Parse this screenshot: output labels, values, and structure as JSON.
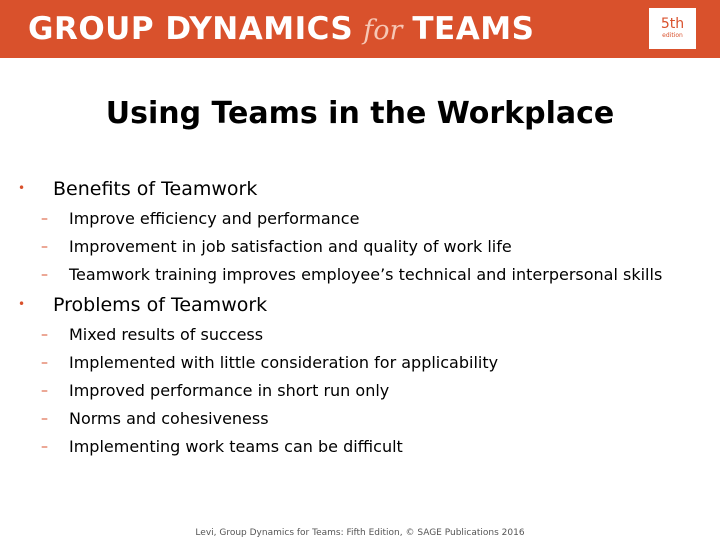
{
  "header": {
    "brand_part1": "GROUP DYNAMICS",
    "brand_for": "for",
    "brand_part2": "TEAMS",
    "edition_number": "5th",
    "edition_word": "edition",
    "background_color": "#d9512c"
  },
  "slide": {
    "title": "Using Teams in the Workplace",
    "bullets": [
      {
        "text": "Benefits of Teamwork",
        "subitems": [
          "Improve efficiency and performance",
          "Improvement in job satisfaction and quality of work life",
          "Teamwork training improves employee’s technical and interpersonal skills"
        ]
      },
      {
        "text": "Problems of Teamwork",
        "subitems": [
          "Mixed results of success",
          "Implemented with little consideration for applicability",
          "Improved performance in short run only",
          "Norms and cohesiveness",
          "Implementing work teams can be difficult"
        ]
      }
    ],
    "bullet_marker": "•",
    "sub_marker": "–",
    "accent_color": "#d9512c"
  },
  "footer": {
    "citation": "Levi, Group Dynamics for Teams: Fifth Edition, © SAGE Publications 2016"
  }
}
